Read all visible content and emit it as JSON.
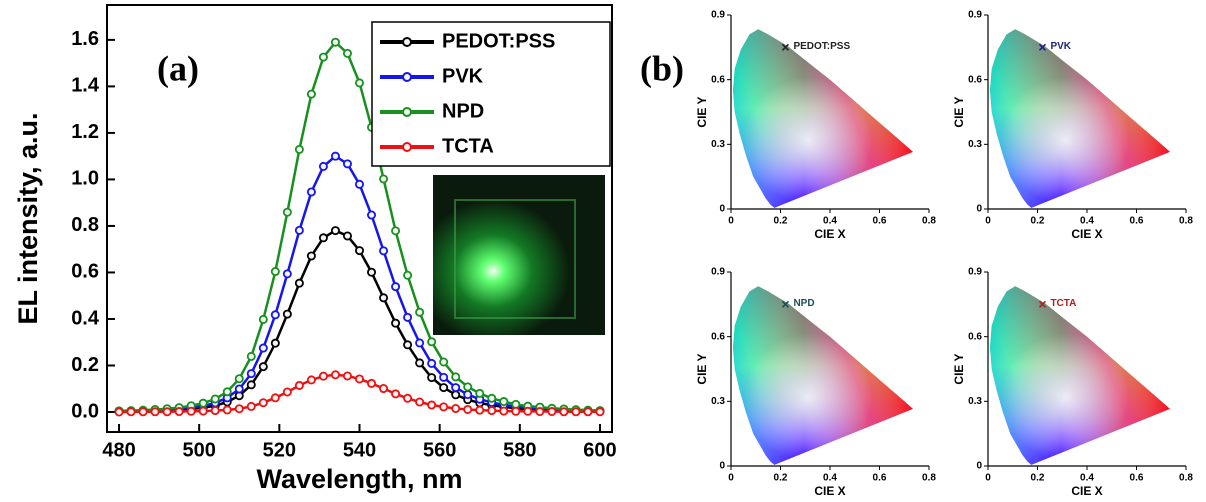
{
  "chart_data": [
    {
      "type": "line",
      "panel_label": "(a)",
      "xlabel": "Wavelength, nm",
      "ylabel": "EL intensity, a.u.",
      "x": [
        480,
        483,
        486,
        489,
        492,
        495,
        498,
        501,
        504,
        507,
        510,
        513,
        516,
        519,
        522,
        525,
        528,
        531,
        534,
        537,
        540,
        543,
        546,
        549,
        552,
        555,
        558,
        561,
        564,
        567,
        570,
        573,
        576,
        579,
        582,
        585,
        588,
        591,
        594,
        597,
        600
      ],
      "series": [
        {
          "name": "PEDOT:PSS",
          "color": "#000000",
          "values": [
            0.002,
            0.003,
            0.004,
            0.005,
            0.007,
            0.009,
            0.013,
            0.019,
            0.027,
            0.043,
            0.07,
            0.117,
            0.195,
            0.296,
            0.421,
            0.554,
            0.671,
            0.749,
            0.78,
            0.757,
            0.694,
            0.601,
            0.491,
            0.382,
            0.289,
            0.211,
            0.148,
            0.105,
            0.074,
            0.053,
            0.039,
            0.029,
            0.022,
            0.016,
            0.012,
            0.01,
            0.008,
            0.006,
            0.005,
            0.004,
            0.003
          ]
        },
        {
          "name": "PVK",
          "color": "#1515ee",
          "values": [
            0.003,
            0.004,
            0.006,
            0.008,
            0.01,
            0.013,
            0.019,
            0.026,
            0.039,
            0.061,
            0.099,
            0.165,
            0.275,
            0.418,
            0.594,
            0.781,
            0.946,
            1.056,
            1.1,
            1.067,
            0.979,
            0.847,
            0.693,
            0.539,
            0.407,
            0.297,
            0.209,
            0.149,
            0.105,
            0.075,
            0.055,
            0.041,
            0.031,
            0.023,
            0.018,
            0.014,
            0.011,
            0.009,
            0.007,
            0.006,
            0.004
          ]
        },
        {
          "name": "NPD",
          "color": "#17901f",
          "values": [
            0.005,
            0.006,
            0.008,
            0.011,
            0.014,
            0.019,
            0.027,
            0.038,
            0.056,
            0.087,
            0.143,
            0.239,
            0.398,
            0.604,
            0.859,
            1.129,
            1.367,
            1.526,
            1.59,
            1.542,
            1.415,
            1.224,
            1.002,
            0.779,
            0.588,
            0.429,
            0.302,
            0.215,
            0.151,
            0.108,
            0.08,
            0.059,
            0.045,
            0.033,
            0.025,
            0.021,
            0.016,
            0.013,
            0.01,
            0.008,
            0.006
          ]
        },
        {
          "name": "TCTA",
          "color": "#ee1111",
          "values": [
            0,
            0.001,
            0.001,
            0.001,
            0.001,
            0.002,
            0.003,
            0.004,
            0.006,
            0.009,
            0.014,
            0.024,
            0.04,
            0.061,
            0.086,
            0.114,
            0.138,
            0.154,
            0.16,
            0.155,
            0.142,
            0.123,
            0.101,
            0.078,
            0.059,
            0.043,
            0.03,
            0.022,
            0.015,
            0.011,
            0.008,
            0.006,
            0.004,
            0.003,
            0.003,
            0.002,
            0.002,
            0.001,
            0.001,
            0.001,
            0.001
          ]
        }
      ],
      "xlim": [
        477,
        603
      ],
      "xticks": [
        480,
        500,
        520,
        540,
        560,
        580,
        600
      ],
      "ylim": [
        -0.086,
        1.75
      ],
      "yticks": [
        {
          "value": 0,
          "label": "0.0"
        },
        0.2,
        0.4,
        0.6,
        0.8,
        {
          "value": 1,
          "label": "1.0"
        },
        1.2,
        1.4,
        1.6
      ],
      "legend": "upper right"
    },
    {
      "type": "cie",
      "panel_label": "(b)",
      "xlabel": "CIE X",
      "ylabel": "CIE Y",
      "xlim": [
        0,
        0.8
      ],
      "xticks": [
        0,
        0.2,
        0.4,
        0.6,
        0.8
      ],
      "ylim": [
        0,
        0.9
      ],
      "yticks": [
        0,
        0.3,
        0.6,
        0.9
      ],
      "series": [
        {
          "name": "PEDOT:PSS",
          "color": "#222222",
          "x": [
            0.22
          ],
          "values": [
            0.75
          ]
        }
      ]
    },
    {
      "type": "cie",
      "xlabel": "CIE X",
      "ylabel": "CIE Y",
      "xlim": [
        0,
        0.8
      ],
      "xticks": [
        0,
        0.2,
        0.4,
        0.6,
        0.8
      ],
      "ylim": [
        0,
        0.9
      ],
      "yticks": [
        0,
        0.3,
        0.6,
        0.9
      ],
      "series": [
        {
          "name": "PVK",
          "color": "#1a237e",
          "x": [
            0.22
          ],
          "values": [
            0.75
          ]
        }
      ]
    },
    {
      "type": "cie",
      "xlabel": "CIE X",
      "ylabel": "CIE Y",
      "xlim": [
        0,
        0.8
      ],
      "xticks": [
        0,
        0.2,
        0.4,
        0.6,
        0.8
      ],
      "ylim": [
        0,
        0.9
      ],
      "yticks": [
        0,
        0.3,
        0.6,
        0.9
      ],
      "series": [
        {
          "name": "NPD",
          "color": "#1b4f5e",
          "x": [
            0.22
          ],
          "values": [
            0.75
          ]
        }
      ]
    },
    {
      "type": "cie",
      "xlabel": "CIE X",
      "ylabel": "CIE Y",
      "xlim": [
        0,
        0.8
      ],
      "xticks": [
        0,
        0.2,
        0.4,
        0.6,
        0.8
      ],
      "ylim": [
        0,
        0.9
      ],
      "yticks": [
        0,
        0.3,
        0.6,
        0.9
      ],
      "series": [
        {
          "name": "TCTA",
          "color": "#b71c1c",
          "x": [
            0.22
          ],
          "values": [
            0.75
          ]
        }
      ]
    }
  ]
}
